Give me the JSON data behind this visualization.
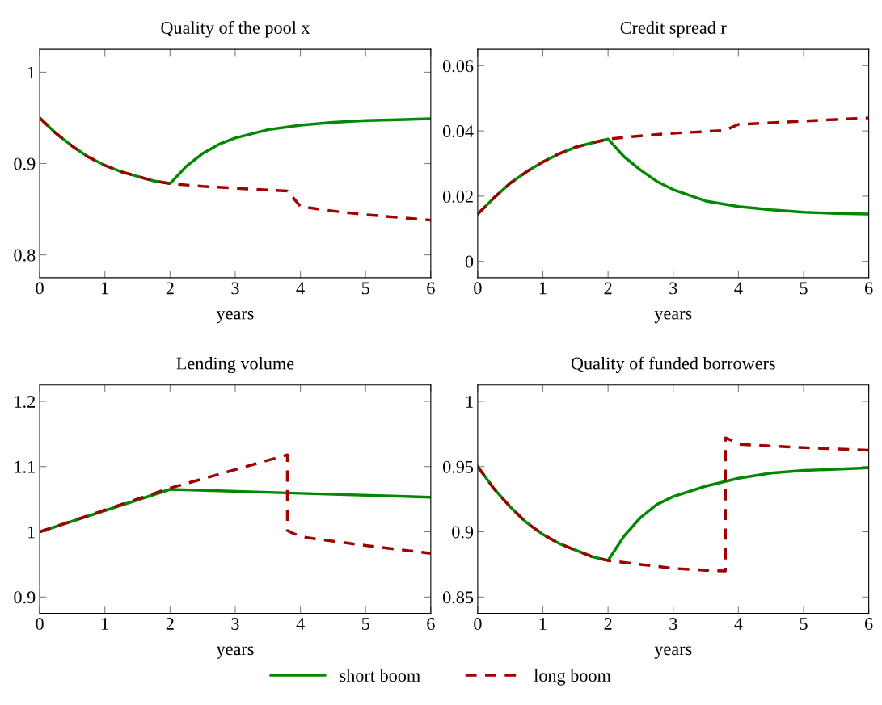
{
  "chart_data": [
    {
      "type": "line",
      "title": "Quality of the pool x",
      "xlabel": "years",
      "xlim": [
        0,
        6
      ],
      "xticks": [
        0,
        1,
        2,
        3,
        4,
        5,
        6
      ],
      "ylim": [
        0.775,
        1.025
      ],
      "yticks": [
        0.8,
        0.9,
        1
      ],
      "grid": false,
      "legend": "bottom",
      "series": [
        {
          "name": "short boom",
          "color": "#008800",
          "line_style": "solid",
          "x": [
            0,
            0.25,
            0.5,
            0.75,
            1,
            1.25,
            1.5,
            1.75,
            2,
            2.25,
            2.5,
            2.75,
            3,
            3.5,
            4,
            4.5,
            5,
            5.5,
            6
          ],
          "values": [
            0.95,
            0.933,
            0.919,
            0.907,
            0.898,
            0.891,
            0.886,
            0.881,
            0.878,
            0.897,
            0.911,
            0.921,
            0.928,
            0.937,
            0.942,
            0.945,
            0.947,
            0.948,
            0.949
          ]
        },
        {
          "name": "long boom",
          "color": "#a00000",
          "line_style": "dashed",
          "x": [
            0,
            0.25,
            0.5,
            0.75,
            1,
            1.25,
            1.5,
            1.75,
            2,
            2.5,
            3,
            3.5,
            3.8,
            4,
            4.5,
            5,
            5.5,
            6
          ],
          "values": [
            0.95,
            0.933,
            0.919,
            0.907,
            0.898,
            0.891,
            0.886,
            0.881,
            0.878,
            0.875,
            0.873,
            0.871,
            0.87,
            0.853,
            0.848,
            0.844,
            0.841,
            0.838
          ]
        }
      ]
    },
    {
      "type": "line",
      "title": "Credit spread r",
      "xlabel": "years",
      "xlim": [
        0,
        6
      ],
      "xticks": [
        0,
        1,
        2,
        3,
        4,
        5,
        6
      ],
      "ylim": [
        -0.005,
        0.065
      ],
      "yticks": [
        0,
        0.02,
        0.04,
        0.06
      ],
      "grid": false,
      "legend": "bottom",
      "series": [
        {
          "name": "short boom",
          "color": "#008800",
          "line_style": "solid",
          "x": [
            0,
            0.25,
            0.5,
            0.75,
            1,
            1.25,
            1.5,
            1.75,
            2,
            2.25,
            2.5,
            2.75,
            3,
            3.5,
            4,
            4.5,
            5,
            5.5,
            6
          ],
          "values": [
            0.0145,
            0.0195,
            0.024,
            0.0275,
            0.0305,
            0.033,
            0.035,
            0.0363,
            0.0375,
            0.032,
            0.028,
            0.0245,
            0.022,
            0.0185,
            0.0168,
            0.0158,
            0.0151,
            0.0147,
            0.0145
          ]
        },
        {
          "name": "long boom",
          "color": "#a00000",
          "line_style": "dashed",
          "x": [
            0,
            0.25,
            0.5,
            0.75,
            1,
            1.25,
            1.5,
            1.75,
            2,
            2.5,
            3,
            3.5,
            3.8,
            4,
            4.5,
            5,
            5.5,
            6
          ],
          "values": [
            0.0145,
            0.0195,
            0.024,
            0.0275,
            0.0305,
            0.033,
            0.035,
            0.0363,
            0.0375,
            0.0385,
            0.0393,
            0.0398,
            0.0402,
            0.042,
            0.0425,
            0.043,
            0.0435,
            0.044
          ]
        }
      ]
    },
    {
      "type": "line",
      "title": "Lending volume",
      "xlabel": "years",
      "xlim": [
        0,
        6
      ],
      "xticks": [
        0,
        1,
        2,
        3,
        4,
        5,
        6
      ],
      "ylim": [
        0.875,
        1.225
      ],
      "yticks": [
        0.9,
        1,
        1.1,
        1.2
      ],
      "grid": false,
      "legend": "bottom",
      "series": [
        {
          "name": "short boom",
          "color": "#008800",
          "line_style": "solid",
          "x": [
            0,
            2,
            4,
            6
          ],
          "values": [
            1.0,
            1.065,
            1.059,
            1.053
          ]
        },
        {
          "name": "long boom",
          "color": "#a00000",
          "line_style": "dashed",
          "x": [
            0,
            2,
            3.8,
            3.8,
            3.9,
            4.1,
            5,
            6
          ],
          "values": [
            1.0,
            1.067,
            1.118,
            1.002,
            0.997,
            0.991,
            0.979,
            0.967
          ]
        }
      ]
    },
    {
      "type": "line",
      "title": "Quality of funded borrowers",
      "xlabel": "years",
      "xlim": [
        0,
        6
      ],
      "xticks": [
        0,
        1,
        2,
        3,
        4,
        5,
        6
      ],
      "ylim": [
        0.8375,
        1.0125
      ],
      "yticks": [
        0.85,
        0.9,
        0.95,
        1
      ],
      "grid": false,
      "legend": "bottom",
      "series": [
        {
          "name": "short boom",
          "color": "#008800",
          "line_style": "solid",
          "x": [
            0,
            0.25,
            0.5,
            0.75,
            1,
            1.25,
            1.5,
            1.75,
            2,
            2.25,
            2.5,
            2.75,
            3,
            3.5,
            4,
            4.5,
            5,
            5.5,
            6
          ],
          "values": [
            0.95,
            0.933,
            0.919,
            0.907,
            0.898,
            0.891,
            0.886,
            0.881,
            0.878,
            0.897,
            0.911,
            0.921,
            0.927,
            0.935,
            0.941,
            0.945,
            0.947,
            0.948,
            0.949
          ]
        },
        {
          "name": "long boom",
          "color": "#a00000",
          "line_style": "dashed",
          "x": [
            0,
            0.25,
            0.5,
            0.75,
            1,
            1.25,
            1.5,
            1.75,
            2,
            2.5,
            3,
            3.5,
            3.8,
            3.8,
            3.9,
            4,
            5,
            6
          ],
          "values": [
            0.95,
            0.933,
            0.919,
            0.907,
            0.898,
            0.891,
            0.886,
            0.881,
            0.878,
            0.875,
            0.872,
            0.8705,
            0.87,
            0.972,
            0.97,
            0.967,
            0.9645,
            0.9625
          ]
        }
      ]
    }
  ]
}
